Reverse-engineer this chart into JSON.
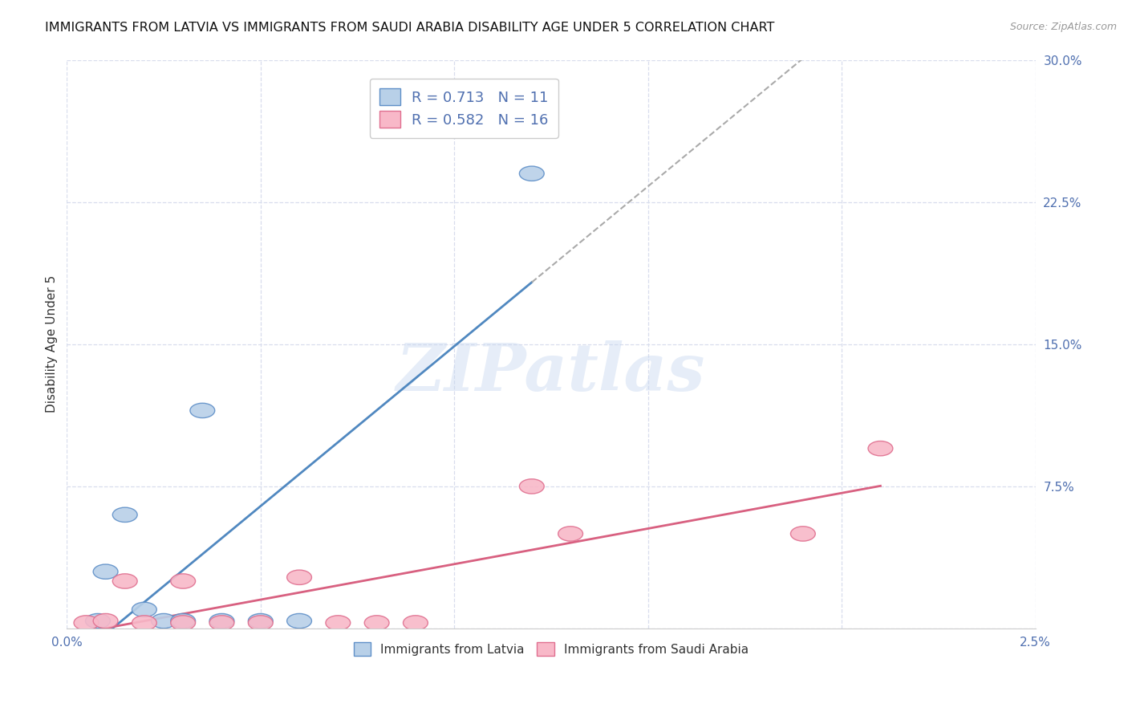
{
  "title": "IMMIGRANTS FROM LATVIA VS IMMIGRANTS FROM SAUDI ARABIA DISABILITY AGE UNDER 5 CORRELATION CHART",
  "source": "Source: ZipAtlas.com",
  "ylabel": "Disability Age Under 5",
  "xlim": [
    0.0,
    0.025
  ],
  "ylim": [
    0.0,
    0.3
  ],
  "xticks": [
    0.0,
    0.005,
    0.01,
    0.015,
    0.02,
    0.025
  ],
  "xticklabels": [
    "0.0%",
    "",
    "",
    "",
    "",
    "2.5%"
  ],
  "yticks_right": [
    0.0,
    0.075,
    0.15,
    0.225,
    0.3
  ],
  "ytick_right_labels": [
    "",
    "7.5%",
    "15.0%",
    "22.5%",
    "30.0%"
  ],
  "latvia_R": 0.713,
  "latvia_N": 11,
  "saudi_R": 0.582,
  "saudi_N": 16,
  "latvia_fill_color": "#b8d0e8",
  "saudi_fill_color": "#f8b8c8",
  "latvia_edge_color": "#6090c8",
  "saudi_edge_color": "#e07090",
  "latvia_line_color": "#5088c0",
  "saudi_line_color": "#d86080",
  "latvia_scatter_x": [
    0.0008,
    0.001,
    0.0015,
    0.002,
    0.0025,
    0.003,
    0.0035,
    0.004,
    0.005,
    0.006,
    0.012
  ],
  "latvia_scatter_y": [
    0.004,
    0.03,
    0.06,
    0.01,
    0.004,
    0.004,
    0.115,
    0.004,
    0.004,
    0.004,
    0.24
  ],
  "saudi_scatter_x": [
    0.0005,
    0.001,
    0.0015,
    0.002,
    0.003,
    0.003,
    0.004,
    0.005,
    0.006,
    0.007,
    0.008,
    0.009,
    0.012,
    0.013,
    0.019,
    0.021
  ],
  "saudi_scatter_y": [
    0.003,
    0.004,
    0.025,
    0.003,
    0.003,
    0.025,
    0.003,
    0.003,
    0.027,
    0.003,
    0.003,
    0.003,
    0.075,
    0.05,
    0.05,
    0.095
  ],
  "background_color": "#ffffff",
  "grid_color": "#d8dded",
  "watermark_text": "ZIPatlas",
  "title_fontsize": 11.5,
  "axis_tick_color": "#5070b0",
  "legend_text_color": "#5070b0"
}
